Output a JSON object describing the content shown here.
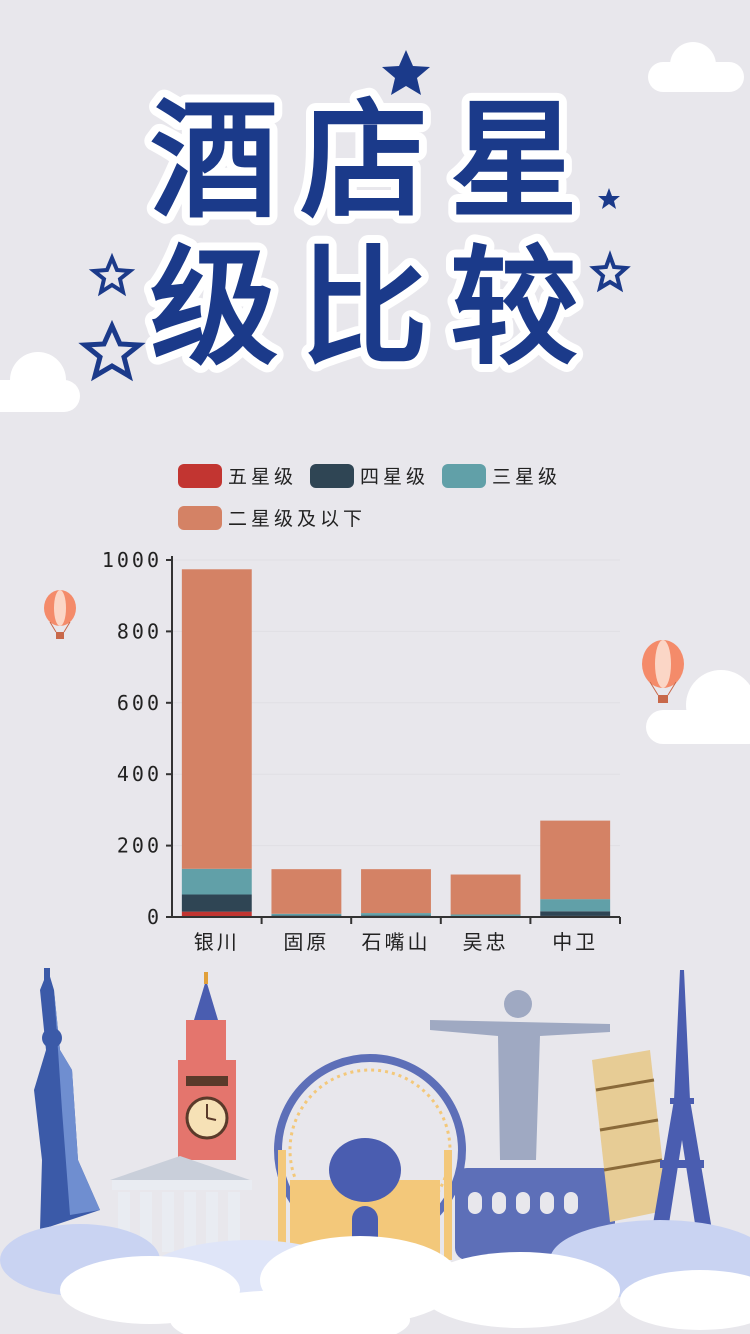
{
  "title": {
    "line1": "酒店星",
    "line2": "级比较"
  },
  "colors": {
    "title_fill": "#1b3a8a",
    "five_star": "#c23531",
    "four_star": "#2f4554",
    "three_star": "#61a0a8",
    "two_star": "#d48265",
    "background": "#e8e7ec"
  },
  "chart_data": {
    "type": "bar",
    "stacked": true,
    "categories": [
      "银川",
      "固原",
      "石嘴山",
      "吴忠",
      "中卫"
    ],
    "series": [
      {
        "name": "五星级",
        "values": [
          15,
          0,
          0,
          0,
          3
        ]
      },
      {
        "name": "四星级",
        "values": [
          48,
          4,
          4,
          3,
          13
        ]
      },
      {
        "name": "三星级",
        "values": [
          72,
          5,
          7,
          4,
          34
        ]
      },
      {
        "name": "二星级及以下",
        "values": [
          839,
          125,
          123,
          112,
          220
        ]
      }
    ],
    "ylim": [
      0,
      1000
    ],
    "yticks": [
      0,
      200,
      400,
      600,
      800,
      1000
    ],
    "legend_position": "top-left",
    "grid": true
  }
}
